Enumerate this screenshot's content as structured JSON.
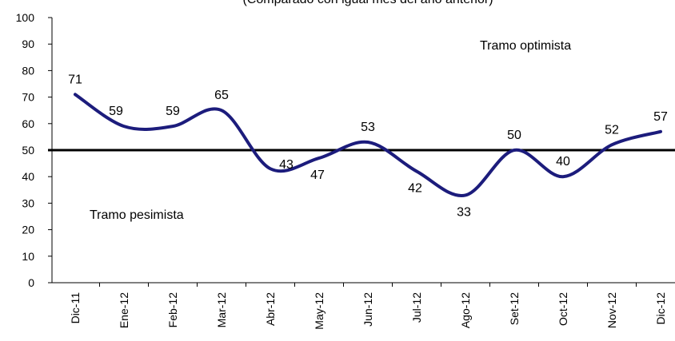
{
  "chart_data": {
    "type": "line",
    "subtitle": "(Comparado con igual mes del año anterior)",
    "categories": [
      "Dic-11",
      "Ene-12",
      "Feb-12",
      "Mar-12",
      "Abr-12",
      "May-12",
      "Jun-12",
      "Jul-12",
      "Ago-12",
      "Set-12",
      "Oct-12",
      "Nov-12",
      "Dic-12"
    ],
    "values": [
      71,
      59,
      59,
      65,
      43,
      47,
      53,
      42,
      33,
      50,
      40,
      52,
      57
    ],
    "color": "#1c1c7c",
    "reference_line": 50,
    "annotations": [
      "Tramo optimista",
      "Tramo pesimista"
    ],
    "ylim": [
      0,
      100
    ],
    "yticks": [
      0,
      10,
      20,
      30,
      40,
      50,
      60,
      70,
      80,
      90,
      100
    ]
  }
}
